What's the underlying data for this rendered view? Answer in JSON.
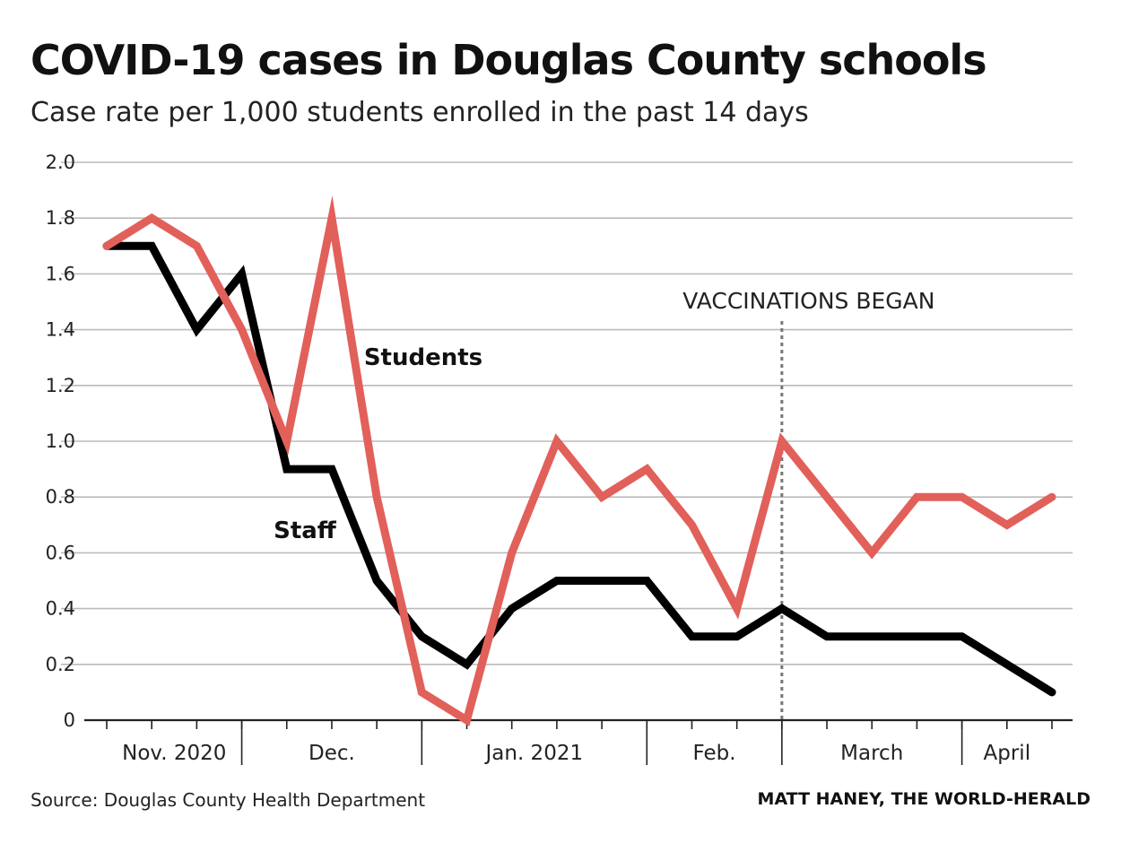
{
  "header": {
    "title": "COVID-19 cases in Douglas County schools",
    "subtitle": "Case rate per 1,000 students enrolled in the past 14 days"
  },
  "footer": {
    "source": "Source: Douglas County Health Department",
    "credit": "MATT HANEY, THE WORLD-HERALD"
  },
  "colors": {
    "students": "#e2605a",
    "staff": "#000000",
    "grid": "#bbbbbb"
  },
  "chart_data": {
    "type": "line",
    "title": "COVID-19 cases in Douglas County schools",
    "ylabel": "",
    "xlabel": "",
    "ylim": [
      0,
      2.0
    ],
    "yticks": [
      0,
      0.2,
      0.4,
      0.6,
      0.8,
      1.0,
      1.2,
      1.4,
      1.6,
      1.8,
      2.0
    ],
    "ytick_labels": [
      "0",
      "0.2",
      "0.4",
      "0.6",
      "0.8",
      "1.0",
      "1.2",
      "1.4",
      "1.6",
      "1.8",
      "2.0"
    ],
    "grid": true,
    "x_index": [
      0,
      1,
      2,
      3,
      4,
      5,
      6,
      7,
      8,
      9,
      10,
      11,
      12,
      13,
      14,
      15,
      16,
      17,
      18,
      19,
      20,
      21
    ],
    "months": [
      {
        "label": "Nov. 2020",
        "start": 0,
        "end": 3
      },
      {
        "label": "Dec.",
        "start": 3,
        "end": 7
      },
      {
        "label": "Jan. 2021",
        "start": 7,
        "end": 12
      },
      {
        "label": "Feb.",
        "start": 12,
        "end": 15
      },
      {
        "label": "March",
        "start": 15,
        "end": 19
      },
      {
        "label": "April",
        "start": 19,
        "end": 21
      }
    ],
    "series": [
      {
        "name": "Students",
        "values": [
          1.7,
          1.8,
          1.7,
          1.4,
          1.0,
          1.8,
          0.8,
          0.1,
          0.0,
          0.6,
          1.0,
          0.8,
          0.9,
          0.7,
          0.4,
          1.0,
          0.8,
          0.6,
          0.8,
          0.8,
          0.7,
          0.8
        ]
      },
      {
        "name": "Staff",
        "values": [
          1.7,
          1.7,
          1.4,
          1.6,
          0.9,
          0.9,
          0.5,
          0.3,
          0.2,
          0.4,
          0.5,
          0.5,
          0.5,
          0.3,
          0.3,
          0.4,
          0.3,
          0.3,
          0.3,
          0.3,
          0.2,
          0.1
        ]
      }
    ],
    "annotations": [
      {
        "text": "VACCINATIONS BEGAN",
        "x": 15
      }
    ]
  }
}
